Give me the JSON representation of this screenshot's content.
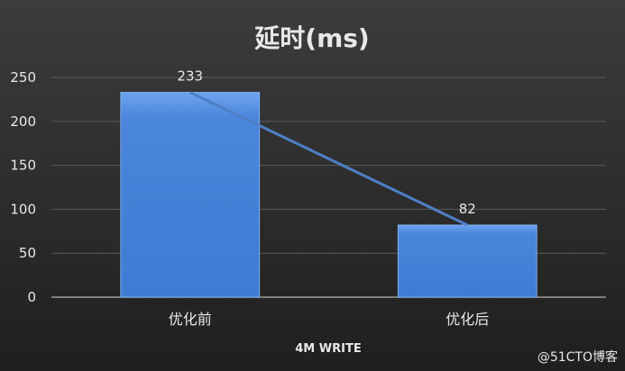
{
  "chart_data": {
    "type": "bar",
    "title": "延时(ms)",
    "xlabel": "4M WRITE",
    "ylabel": "",
    "categories": [
      "优化前",
      "优化后"
    ],
    "values": [
      233,
      82
    ],
    "ylim": [
      0,
      250
    ],
    "yticks": [
      0,
      50,
      100,
      150,
      200,
      250
    ],
    "data_labels": [
      "233",
      "82"
    ],
    "grid": true,
    "legend": "none",
    "overlay_line": true
  },
  "watermark": "@51CTO博客",
  "colors": {
    "background_top": "#3c3c3c",
    "background_bottom": "#1f1f1f",
    "bar": "#3f7bd4",
    "bar_top": "#6fa4ef",
    "bar_edge": "#7fb0f2",
    "line": "#4e7fc4",
    "text": "#e8e8e8",
    "grid": "#5a5a5a",
    "axis": "#9a9a9a"
  }
}
